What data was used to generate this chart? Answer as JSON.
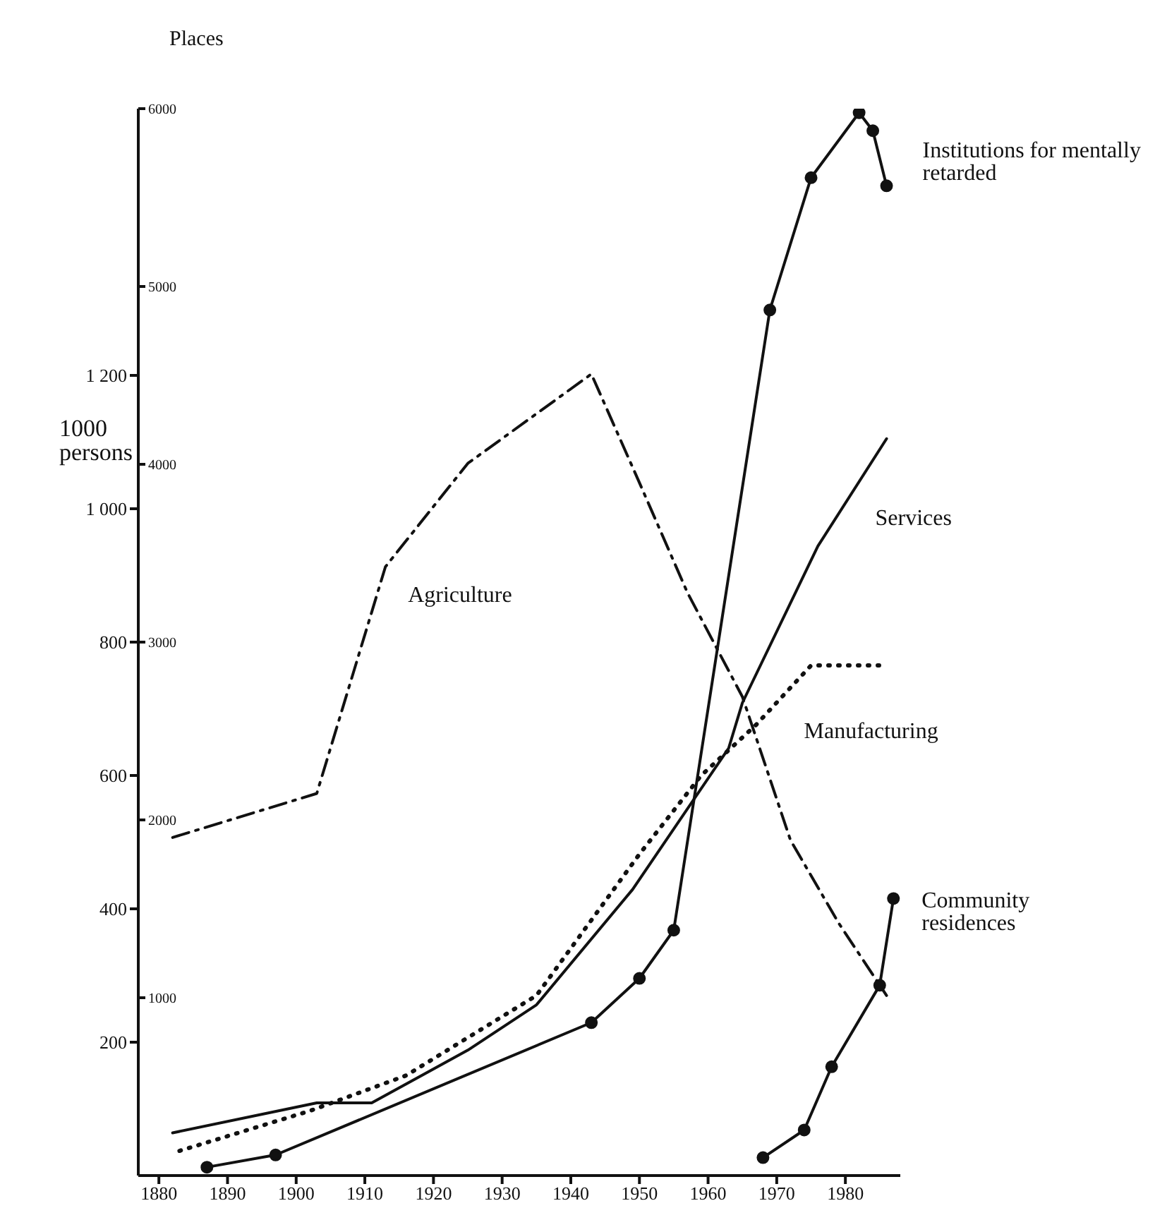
{
  "chart_data": {
    "type": "line",
    "ylabel": "1000 persons",
    "y2label": "Places",
    "xlim": [
      1877,
      1988
    ],
    "xticks": [
      1880,
      1890,
      1900,
      1910,
      1920,
      1930,
      1940,
      1950,
      1960,
      1970,
      1980
    ],
    "ylim": [
      0,
      1600
    ],
    "yticks": [
      200,
      400,
      600,
      800,
      {
        "value": 1000,
        "label": "1 000"
      },
      {
        "value": 1200,
        "label": "1 200"
      }
    ],
    "y2lim": [
      0,
      6000
    ],
    "y2ticks": [
      1000,
      2000,
      3000,
      4000,
      5000,
      6000
    ],
    "series": [
      {
        "name": "Agriculture",
        "color": "#111111",
        "line_style": "dashdot",
        "marker": "none",
        "x": [
          1882,
          1903,
          1913,
          1925,
          1943,
          1950,
          1957,
          1965,
          1972,
          1979,
          1986
        ],
        "values": [
          507,
          573,
          913,
          1068,
          1202,
          1039,
          874,
          718,
          503,
          379,
          270
        ]
      },
      {
        "name": "Services",
        "color": "#111111",
        "line_style": "solid",
        "marker": "none",
        "x": [
          1882,
          1903,
          1911,
          1925,
          1935,
          1949,
          1963,
          1965,
          1976,
          1986
        ],
        "values": [
          64,
          109,
          109,
          188,
          256,
          429,
          641,
          709,
          944,
          1105
        ]
      },
      {
        "name": "Manufacturing",
        "color": "#111111",
        "line_style": "dotted",
        "marker": "none",
        "x": [
          1883,
          1902,
          1916,
          1935,
          1950,
          1959,
          1967,
          1975,
          1985
        ],
        "values": [
          37,
          97,
          150,
          270,
          482,
          600,
          676,
          765,
          765
        ]
      },
      {
        "name": "Institutions for mentally retarded",
        "color": "#111111",
        "line_style": "solid",
        "marker": "circle",
        "axis": "y2",
        "x": [
          1887,
          1897,
          1943,
          1950,
          1955,
          1969,
          1975,
          1982,
          1984,
          1986
        ],
        "values": [
          47,
          116,
          860,
          1109,
          1380,
          4868,
          5612,
          5977,
          5876,
          5566
        ]
      },
      {
        "name": "Community residences",
        "color": "#111111",
        "line_style": "solid",
        "marker": "circle",
        "axis": "y2",
        "x": [
          1968,
          1974,
          1978,
          1985,
          1987
        ],
        "values": [
          101,
          256,
          612,
          1070,
          1558
        ]
      }
    ]
  }
}
